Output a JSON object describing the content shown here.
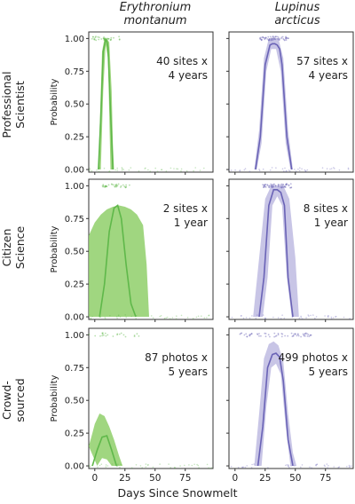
{
  "chart_data": {
    "type": "line",
    "xlabel": "Days Since Snowmelt",
    "ylabel": "Probability",
    "xlim": [
      -5,
      98
    ],
    "ylim": [
      -0.02,
      1.05
    ],
    "x_ticks": [
      0,
      25,
      50,
      75
    ],
    "y_ticks": [
      "0.00",
      "0.25",
      "0.50",
      "0.75",
      "1.00"
    ],
    "columns": [
      "Erythronium\nmontanum",
      "Lupinus\narcticus"
    ],
    "column_lines": [
      [
        "Erythronium",
        "montanum"
      ],
      [
        "Lupinus",
        "arcticus"
      ]
    ],
    "rows": [
      {
        "label_lines": [
          "Professional",
          "Scientist"
        ]
      },
      {
        "label_lines": [
          "Citizen",
          "Science"
        ]
      },
      {
        "label_lines": [
          "Crowd-",
          "sourced"
        ]
      }
    ],
    "colors": {
      "erythronium_line": "#5fb84a",
      "erythronium_band": "#8fcf6a",
      "lupinus_line": "#6a63b6",
      "lupinus_band": "#b5b2de"
    },
    "panels": [
      {
        "row": 0,
        "col": 0,
        "species": "Erythronium montanum",
        "annotation_lines": [
          "40 sites x",
          "4 years"
        ],
        "curve": {
          "x": [
            3,
            5,
            7,
            9,
            10,
            11,
            13,
            15
          ],
          "y": [
            0.0,
            0.4,
            0.9,
            0.99,
            0.98,
            0.93,
            0.45,
            0.0
          ]
        },
        "band_upper": {
          "x": [
            3,
            4,
            6,
            8,
            10,
            12,
            14,
            15,
            16
          ],
          "y": [
            0.0,
            0.3,
            0.9,
            1.0,
            1.0,
            0.97,
            0.6,
            0.2,
            0.0
          ]
        },
        "band_lower": {
          "x": [
            5,
            7,
            9,
            11,
            13
          ],
          "y": [
            0.0,
            0.6,
            0.95,
            0.85,
            0.0
          ]
        }
      },
      {
        "row": 0,
        "col": 1,
        "species": "Lupinus arcticus",
        "annotation_lines": [
          "57 sites x",
          "4 years"
        ],
        "curve": {
          "x": [
            17,
            21,
            25,
            29,
            31,
            33,
            35,
            37,
            39,
            43,
            47
          ],
          "y": [
            0.0,
            0.25,
            0.8,
            0.95,
            0.96,
            0.96,
            0.95,
            0.92,
            0.8,
            0.25,
            0.0
          ]
        },
        "band_upper": {
          "x": [
            16,
            20,
            24,
            28,
            32,
            36,
            40,
            44,
            48
          ],
          "y": [
            0.0,
            0.3,
            0.85,
            1.0,
            1.0,
            1.0,
            0.85,
            0.3,
            0.0
          ]
        },
        "band_lower": {
          "x": [
            18,
            22,
            26,
            30,
            34,
            38,
            42,
            46
          ],
          "y": [
            0.0,
            0.2,
            0.75,
            0.92,
            0.92,
            0.75,
            0.2,
            0.0
          ]
        }
      },
      {
        "row": 1,
        "col": 0,
        "species": "Erythronium montanum",
        "annotation_lines": [
          "2 sites x",
          "1 year"
        ],
        "curve": {
          "x": [
            4,
            8,
            12,
            16,
            19,
            22,
            26,
            30,
            34
          ],
          "y": [
            0.0,
            0.25,
            0.65,
            0.83,
            0.85,
            0.75,
            0.4,
            0.1,
            0.0
          ]
        },
        "band_upper": {
          "x": [
            -5,
            0,
            5,
            10,
            15,
            20,
            25,
            30,
            35,
            40,
            43,
            45
          ],
          "y": [
            0.62,
            0.72,
            0.78,
            0.82,
            0.84,
            0.85,
            0.84,
            0.82,
            0.78,
            0.7,
            0.4,
            0.0
          ]
        },
        "band_lower": {
          "x": [
            -5,
            45
          ],
          "y": [
            0.0,
            0.0
          ]
        }
      },
      {
        "row": 1,
        "col": 1,
        "species": "Lupinus arcticus",
        "annotation_lines": [
          "8 sites x",
          "1 year"
        ],
        "curve": {
          "x": [
            20,
            24,
            28,
            32,
            35,
            38,
            41,
            44,
            48
          ],
          "y": [
            0.0,
            0.3,
            0.85,
            0.97,
            0.97,
            0.95,
            0.85,
            0.3,
            0.0
          ]
        },
        "band_upper": {
          "x": [
            15,
            20,
            25,
            30,
            35,
            40,
            45,
            50,
            53
          ],
          "y": [
            0.0,
            0.45,
            0.9,
            1.0,
            1.0,
            1.0,
            0.9,
            0.45,
            0.0
          ]
        },
        "band_lower": {
          "x": [
            23,
            27,
            31,
            35,
            39,
            43,
            47
          ],
          "y": [
            0.0,
            0.3,
            0.85,
            0.92,
            0.85,
            0.3,
            0.0
          ]
        }
      },
      {
        "row": 2,
        "col": 0,
        "species": "Erythronium montanum",
        "annotation_lines": [
          "87 photos x",
          "5 years"
        ],
        "curve": {
          "x": [
            -2,
            2,
            6,
            10,
            14,
            18
          ],
          "y": [
            0.0,
            0.12,
            0.22,
            0.23,
            0.12,
            0.0
          ]
        },
        "band_upper": {
          "x": [
            -5,
            -2,
            0,
            4,
            8,
            12,
            16,
            20,
            23
          ],
          "y": [
            0.15,
            0.25,
            0.32,
            0.4,
            0.38,
            0.3,
            0.2,
            0.08,
            0.0
          ]
        },
        "band_lower": {
          "x": [
            2,
            6,
            10,
            14
          ],
          "y": [
            0.0,
            0.06,
            0.05,
            0.0
          ]
        }
      },
      {
        "row": 2,
        "col": 1,
        "species": "Lupinus arcticus",
        "annotation_lines": [
          "499 photos x",
          "5 years"
        ],
        "curve": {
          "x": [
            19,
            23,
            27,
            31,
            34,
            37,
            40,
            44,
            48
          ],
          "y": [
            0.0,
            0.3,
            0.75,
            0.85,
            0.86,
            0.83,
            0.65,
            0.2,
            0.0
          ]
        },
        "band_upper": {
          "x": [
            16,
            20,
            24,
            28,
            32,
            36,
            40,
            44,
            48,
            51
          ],
          "y": [
            0.0,
            0.4,
            0.82,
            0.93,
            0.95,
            0.92,
            0.8,
            0.4,
            0.1,
            0.0
          ]
        },
        "band_lower": {
          "x": [
            22,
            26,
            30,
            34,
            38,
            42,
            46
          ],
          "y": [
            0.0,
            0.45,
            0.75,
            0.78,
            0.7,
            0.3,
            0.0
          ]
        }
      }
    ]
  }
}
